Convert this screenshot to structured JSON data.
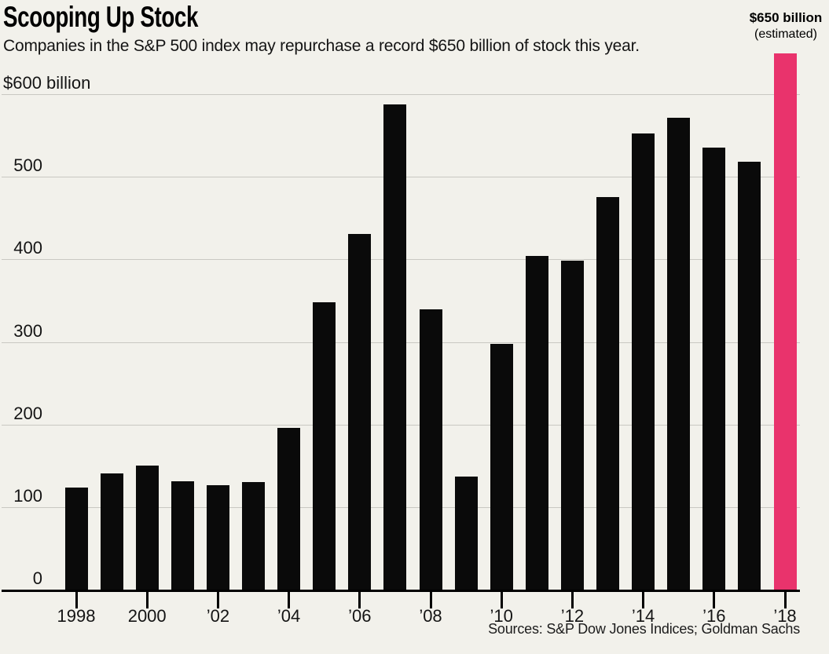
{
  "header": {
    "title": "Scooping Up Stock",
    "subtitle": "Companies in the S&P 500 index may repurchase a record $650 billion of stock this year."
  },
  "annotation": {
    "value": "$650 billion",
    "note": "(estimated)"
  },
  "source": "Sources: S&P Dow Jones Indices; Goldman Sachs",
  "colors": {
    "background": "#F2F1EB",
    "bar": "#0A0A0A",
    "highlight": "#E9336C",
    "gridline": "#C9C8C2",
    "axis": "#000000"
  },
  "chart_data": {
    "type": "bar",
    "title": "Scooping Up Stock",
    "xlabel": "",
    "ylabel": "",
    "units": "$ billions",
    "categories": [
      "1998",
      "1999",
      "2000",
      "2001",
      "2002",
      "2003",
      "2004",
      "2005",
      "2006",
      "2007",
      "2008",
      "2009",
      "2010",
      "2011",
      "2012",
      "2013",
      "2014",
      "2015",
      "2016",
      "2017",
      "2018"
    ],
    "values": [
      125,
      142,
      151,
      132,
      127,
      131,
      197,
      349,
      432,
      589,
      340,
      138,
      299,
      405,
      399,
      476,
      553,
      572,
      536,
      519,
      650
    ],
    "highlight_index": 20,
    "highlight_note": "$650 billion (estimated)",
    "ylim": [
      0,
      650
    ],
    "ytick_values": [
      0,
      100,
      200,
      300,
      400,
      500,
      600
    ],
    "ytick_labels": [
      "0",
      "100",
      "200",
      "300",
      "400",
      "500",
      "$600 billion"
    ],
    "xtick_indices": [
      0,
      2,
      4,
      6,
      8,
      10,
      12,
      14,
      16,
      18,
      20
    ],
    "xtick_labels": [
      "1998",
      "2000",
      "’02",
      "’04",
      "’06",
      "’08",
      "’10",
      "’12",
      "’14",
      "’16",
      "’18"
    ],
    "grid": true,
    "legend": "none"
  }
}
